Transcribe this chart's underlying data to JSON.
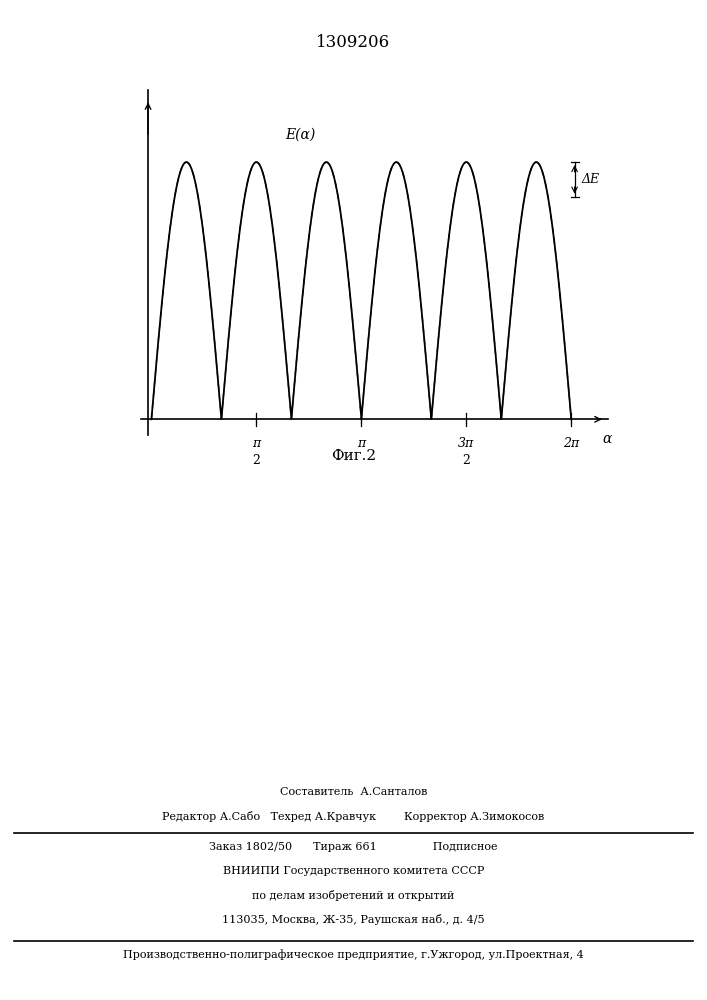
{
  "title": "1309206",
  "fig_caption": "Фиг.2",
  "e_label": "E(α)",
  "delta_e_label": "ΔE",
  "alpha_label": "α",
  "x_ticks": [
    1.5707963,
    3.1415926,
    4.7123889,
    6.2831853
  ],
  "x_tick_labels": [
    "π\n2",
    "π",
    "3π\n2",
    "2π"
  ],
  "background_color": "#ffffff",
  "text_color": "#000000",
  "footer_line1": "Составитель  А.Санталов",
  "footer_line2": "Редактор А.Сабо   Техред А.Кравчук        Корректор А.Зимокосов",
  "footer_line3": "Заказ 1802/50      Тираж 661                Подписное",
  "footer_line4": "ВНИИПИ Государственного комитета СССР",
  "footer_line5": "по делам изобретений и открытий",
  "footer_line6": "113035, Москва, Ж-35, Раушская наб., д. 4/5",
  "footer_line7": "Производственно-полиграфическое предприятие, г.Ужгород, ул.Проектная, 4"
}
